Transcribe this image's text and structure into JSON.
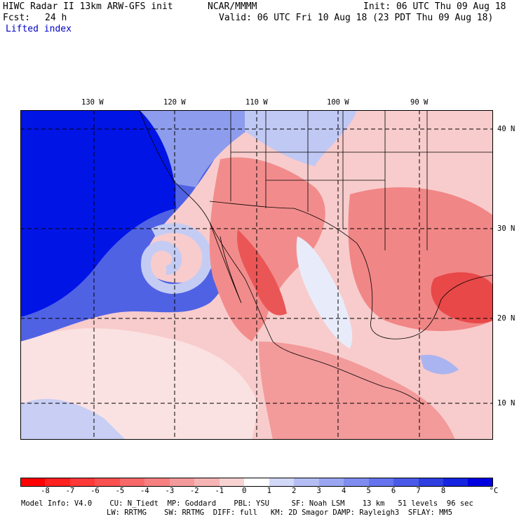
{
  "header": {
    "title_left": "HIWC Radar II 13km ARW-GFS init",
    "center": "NCAR/MMMM",
    "init": "Init: 06 UTC Thu 09 Aug 18",
    "fcst_label": "Fcst:",
    "fcst_value": "24 h",
    "valid": "Valid: 06 UTC Fri 10 Aug 18 (23 PDT Thu 09 Aug 18)",
    "field": "Lifted index"
  },
  "map": {
    "lon_labels": [
      "130 W",
      "120 W",
      "110 W",
      "100 W",
      "90 W"
    ],
    "lat_labels": [
      "40 N",
      "30 N",
      "20 N",
      "10 N"
    ],
    "colors": {
      "deep_blue": "#0014e6",
      "mid_blue": "#4a5ce0",
      "light_blue": "#b8c4f4",
      "pale_red": "#f8cccc",
      "mid_red": "#f07a7a",
      "deep_red": "#e83a3a",
      "contour": "#7a2020"
    }
  },
  "colorbar": {
    "unit": "°C",
    "ticks": [
      "-8",
      "-7",
      "-6",
      "-5",
      "-4",
      "-3",
      "-2",
      "-1",
      "0",
      "1",
      "2",
      "3",
      "4",
      "5",
      "6",
      "7",
      "8"
    ],
    "colors": [
      "#ff0000",
      "#ff2020",
      "#ff3838",
      "#fb5050",
      "#f86868",
      "#f68080",
      "#f59a9a",
      "#f6b4b4",
      "#f9d2d2",
      "#ffffff",
      "#d2d8f8",
      "#b4bef4",
      "#9aa6f2",
      "#7f8df0",
      "#6574ee",
      "#4a5ae8",
      "#2e3ee0",
      "#1424e0",
      "#0000e0"
    ]
  },
  "footer": {
    "line1": "Model Info: V4.0    CU: N_Tiedt  MP: Goddard    PBL: YSU     SF: Noah LSM    13 km   51 levels  96 sec",
    "line2": "LW: RRTMG    SW: RRTMG  DIFF: full   KM: 2D Smagor DAMP: Rayleigh3  SFLAY: MM5"
  }
}
